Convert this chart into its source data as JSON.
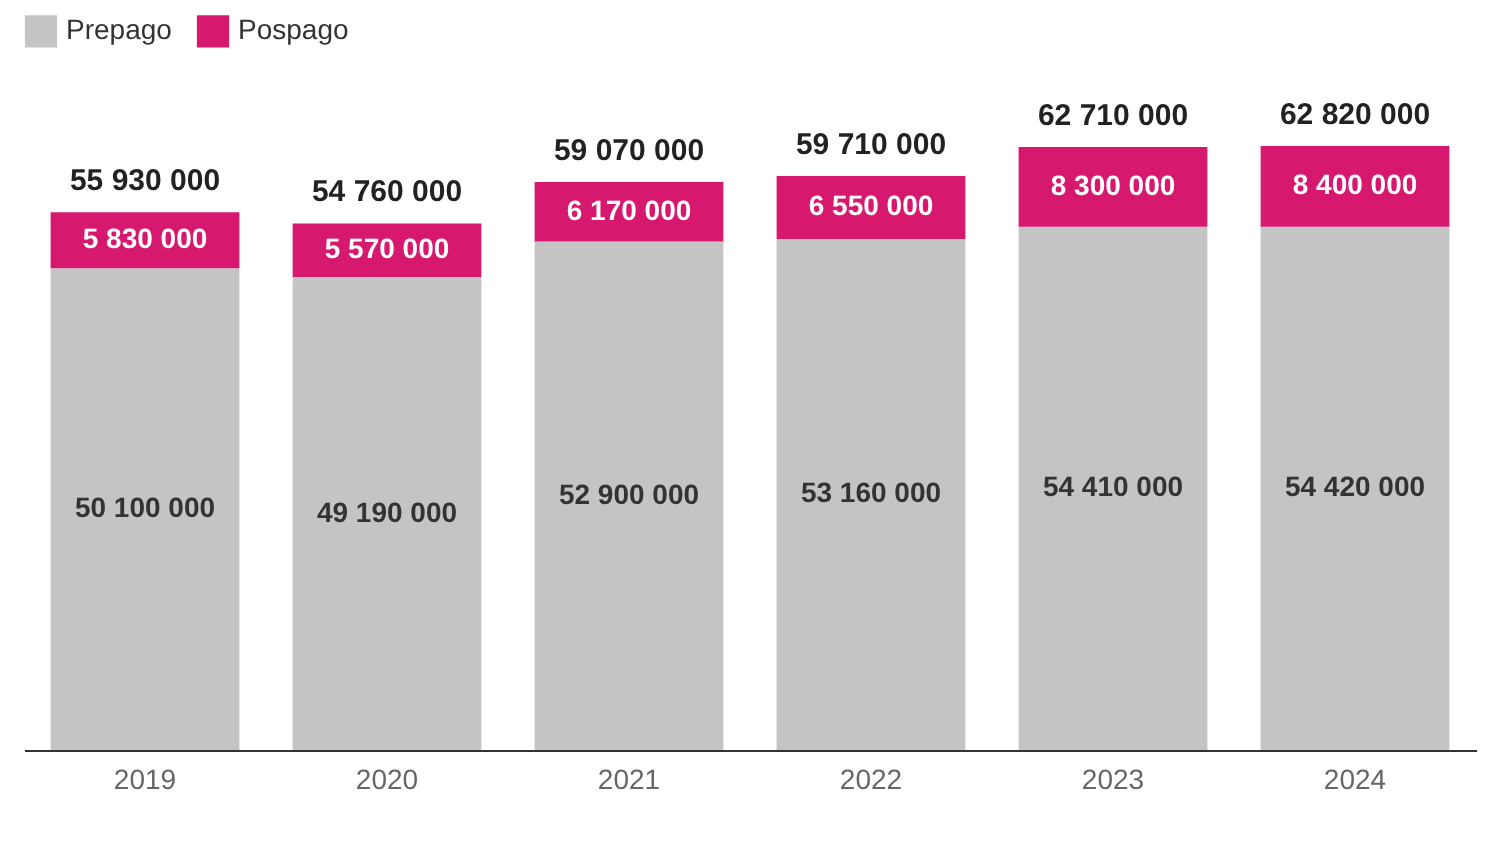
{
  "chart_data": {
    "type": "bar",
    "stacked": true,
    "legend": "top left",
    "grid": false,
    "categories": [
      "2019",
      "2020",
      "2021",
      "2022",
      "2023",
      "2024"
    ],
    "series": [
      {
        "name": "Prepago",
        "color": "#c4c4c4",
        "values": [
          50100000,
          49190000,
          52900000,
          53160000,
          54410000,
          54420000
        ],
        "value_labels": [
          "50 100 000",
          "49 190 000",
          "52 900 000",
          "53 160 000",
          "54 410 000",
          "54 420 000"
        ]
      },
      {
        "name": "Pospago",
        "color": "#d6186f",
        "values": [
          5830000,
          5570000,
          6170000,
          6550000,
          8300000,
          8400000
        ],
        "value_labels": [
          "5 830 000",
          "5 570 000",
          "6 170 000",
          "6 550 000",
          "8 300 000",
          "8 400 000"
        ]
      }
    ],
    "totals": [
      "55 930 000",
      "54 760 000",
      "59 070 000",
      "59 710 000",
      "62 710 000",
      "62 820 000"
    ]
  }
}
